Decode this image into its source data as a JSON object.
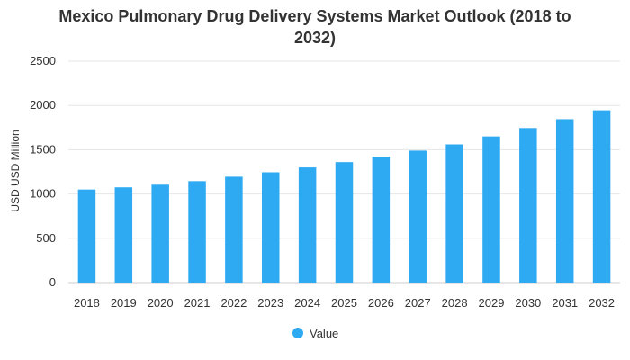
{
  "chart_data": {
    "type": "bar",
    "title_lines": [
      "Mexico Pulmonary Drug Delivery Systems Market Outlook (2018 to",
      "2032)"
    ],
    "xlabel": "",
    "ylabel": "USD USD Million",
    "ylim": [
      0,
      2500
    ],
    "yticks": [
      0,
      500,
      1000,
      1500,
      2000,
      2500
    ],
    "grid": true,
    "legend_position": "bottom-center",
    "categories": [
      "2018",
      "2019",
      "2020",
      "2021",
      "2022",
      "2023",
      "2024",
      "2025",
      "2026",
      "2027",
      "2028",
      "2029",
      "2030",
      "2031",
      "2032"
    ],
    "series": [
      {
        "name": "Value",
        "color": "#2eaaf2",
        "values": [
          1050,
          1075,
          1105,
          1145,
          1195,
          1245,
          1300,
          1360,
          1420,
          1490,
          1560,
          1650,
          1745,
          1845,
          1945
        ]
      }
    ]
  }
}
